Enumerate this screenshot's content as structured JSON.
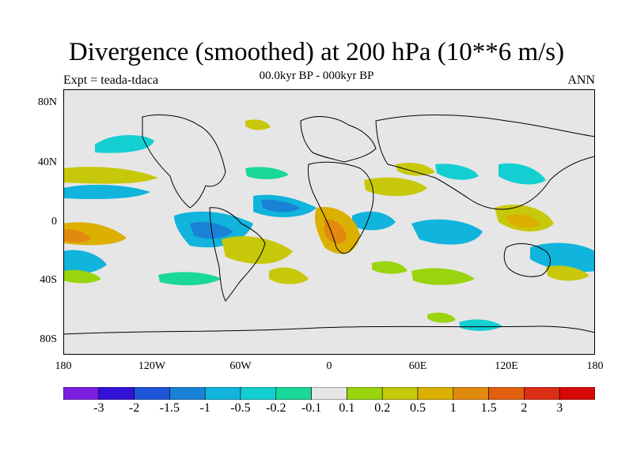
{
  "title": "Divergence (smoothed) at 200 hPa (10**6 m/s)",
  "experiment": "Expt = teada-tdaca",
  "period": "00.0kyr BP - 000kyr BP",
  "season": "ANN",
  "lat_ticks": [
    "80N",
    "40N",
    "0",
    "40S",
    "80S"
  ],
  "lon_ticks": [
    "180",
    "120W",
    "60W",
    "0",
    "60E",
    "120E",
    "180"
  ],
  "colorbar": {
    "labels": [
      "-3",
      "-2",
      "-1.5",
      "-1",
      "-0.5",
      "-0.2",
      "-0.1",
      "0.1",
      "0.2",
      "0.5",
      "1",
      "1.5",
      "2",
      "3"
    ],
    "colors": [
      "#7a1ee0",
      "#3411d6",
      "#1f55d8",
      "#1a82d6",
      "#10b4dc",
      "#14cfd2",
      "#1ad79a",
      "#e6e6e6",
      "#9ad40e",
      "#c8c80a",
      "#dcb000",
      "#e28a0e",
      "#e26010",
      "#dc2e14",
      "#d80808"
    ]
  },
  "map_background": "#e6e6e6"
}
